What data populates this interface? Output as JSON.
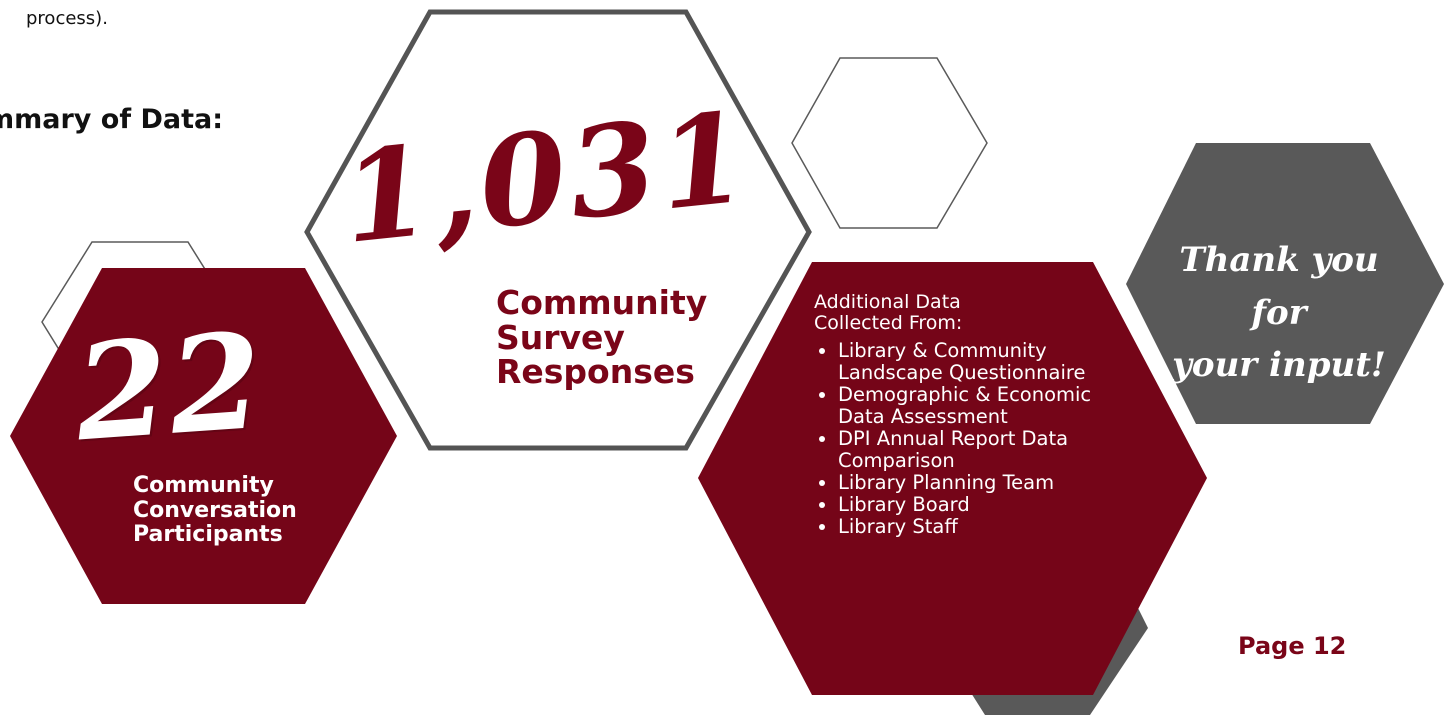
{
  "intro": {
    "text": "process)."
  },
  "section": {
    "title": "mmary of Data:"
  },
  "survey": {
    "number": "1,031",
    "label_lines": [
      "Community",
      "Survey",
      "Responses"
    ]
  },
  "conversation": {
    "number": "22",
    "label_lines": [
      "Community",
      "Conversation",
      "Participants"
    ]
  },
  "additional": {
    "title_lines": [
      "Additional Data",
      "Collected From:"
    ],
    "items": [
      "Library & Community Landscape Questionnaire",
      "Demographic & Economic Data Assessment",
      "DPI Annual Report Data Comparison",
      "Library Planning Team",
      "Library Board",
      "Library Staff"
    ]
  },
  "thanks": {
    "lines": [
      "Thank you for",
      "your input!"
    ]
  },
  "page": {
    "label": "Page 12"
  },
  "colors": {
    "maroon": "#750518",
    "dark_gray": "#595959",
    "outline_gray": "#4a4a4a"
  }
}
